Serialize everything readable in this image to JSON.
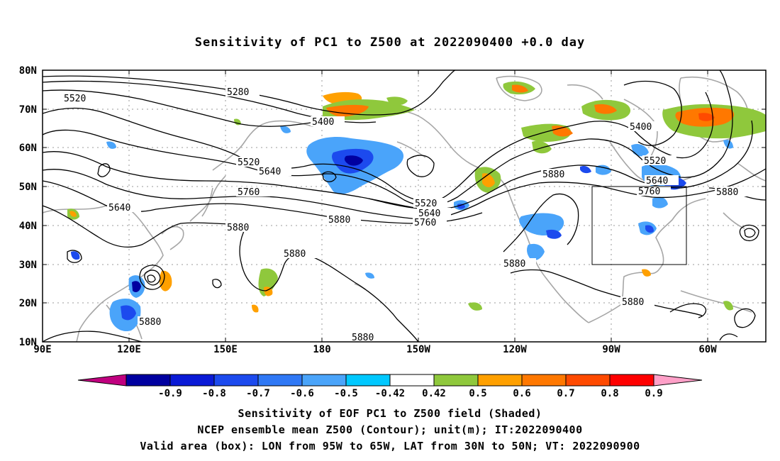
{
  "title": "Sensitivity of PC1 to Z500 at 2022090400 +0.0 day",
  "lat_labels": [
    "80N",
    "70N",
    "60N",
    "50N",
    "40N",
    "30N",
    "20N",
    "10N"
  ],
  "lon_labels": [
    "90E",
    "120E",
    "150E",
    "180",
    "150W",
    "120W",
    "90W",
    "60W"
  ],
  "contour_labels": {
    "c5280": "5280",
    "c5400a": "5400",
    "c5400b": "5400",
    "c5520a": "5520",
    "c5520b": "5520",
    "c5520c": "5520",
    "c5520d": "5520",
    "c5640a": "5640",
    "c5640b": "5640",
    "c5640c": "5640",
    "c5640d": "5640",
    "c5760a": "5760",
    "c5760b": "5760",
    "c5760c": "5760",
    "c5880a": "5880",
    "c5880b": "5880",
    "c5880c": "5880",
    "c5880d": "5880",
    "c5880e": "5880",
    "c5880f": "5880",
    "c5880g": "5880",
    "c5880h": "5880",
    "c5880i": "5880"
  },
  "valid_box": {
    "lon_range": "95W to 65W",
    "lat_range": "30N to 50N"
  },
  "colorbar": {
    "ticks": [
      "-0.9",
      "-0.8",
      "-0.7",
      "-0.6",
      "-0.5",
      "-0.42",
      "0.42",
      "0.5",
      "0.6",
      "0.7",
      "0.8",
      "0.9"
    ],
    "colors": [
      "#c0007f",
      "#0000a0",
      "#0a1ad6",
      "#1c4aee",
      "#2f78f5",
      "#4aa4fa",
      "#00c8ff",
      "#ffffff",
      "#8fc83c",
      "#ffa000",
      "#ff7800",
      "#ff4a00",
      "#ff0000",
      "#ffa0c8"
    ]
  },
  "captions": {
    "line1": "Sensitivity of EOF PC1 to Z500 field (Shaded)",
    "line2": "NCEP ensemble mean Z500 (Contour); unit(m); IT:2022090400",
    "line3": "Valid area (box): LON from 95W to 65W, LAT from 30N to 50N; VT: 2022090900"
  }
}
